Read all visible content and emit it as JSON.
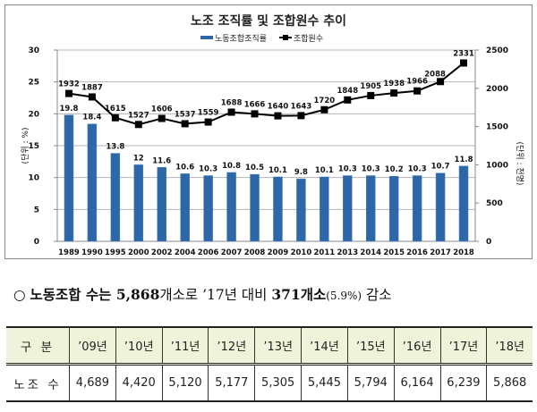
{
  "chart_data": {
    "type": "bar+line",
    "title": "노조 조직률 및 조합원수 추이",
    "legend": [
      "노동조합조직률",
      "조합원수"
    ],
    "legend_position": "top",
    "categories": [
      "1989",
      "1990",
      "1995",
      "2000",
      "2002",
      "2004",
      "2006",
      "2007",
      "2008",
      "2009",
      "2010",
      "2011",
      "2013",
      "2014",
      "2015",
      "2016",
      "2017",
      "2018"
    ],
    "series": [
      {
        "name": "노동조합조직률",
        "type": "bar",
        "axis": "left",
        "color": "#2e67a8",
        "values": [
          19.8,
          18.4,
          13.8,
          12,
          11.6,
          10.6,
          10.3,
          10.8,
          10.5,
          10.1,
          9.8,
          10.1,
          10.3,
          10.3,
          10.2,
          10.3,
          10.7,
          11.8
        ],
        "labels": [
          "19.8",
          "18.4",
          "13.8",
          "12",
          "11.6",
          "10.6",
          "10.3",
          "10.8",
          "10.5",
          "10.1",
          "9.8",
          "10.1",
          "10.3",
          "10.3",
          "10.2",
          "10.3",
          "10.7",
          "11.8"
        ]
      },
      {
        "name": "조합원수",
        "type": "line",
        "axis": "right",
        "color": "#000000",
        "values": [
          1932,
          1887,
          1615,
          1527,
          1606,
          1537,
          1559,
          1688,
          1666,
          1640,
          1643,
          1720,
          1848,
          1905,
          1938,
          1966,
          2088,
          2331
        ]
      }
    ],
    "ylabel": "(단위 : %)",
    "ylabel_right": "(단위 : 천명)",
    "ylim": [
      0,
      30
    ],
    "yticks": [
      0,
      5,
      10,
      15,
      20,
      25,
      30
    ],
    "ylim_right": [
      0,
      2500
    ],
    "yticks_right": [
      0,
      500,
      1000,
      1500,
      2000,
      2500
    ],
    "grid": true
  },
  "summary": {
    "bullet": "○",
    "part1": "노동조합 수는 ",
    "count": "5,868",
    "part2": "개소로 ’17년 대비 ",
    "decrease": "371개소",
    "pct": "(5.9%)",
    "part3": " 감소"
  },
  "table": {
    "header_label": "구 분",
    "years": [
      "’09년",
      "’10년",
      "’11년",
      "’12년",
      "’13년",
      "’14년",
      "’15년",
      "’16년",
      "’17년",
      "’18년"
    ],
    "row_label": "노조 수",
    "values": [
      "4,689",
      "4,420",
      "5,120",
      "5,177",
      "5,305",
      "5,445",
      "5,794",
      "6,164",
      "6,239",
      "5,868"
    ]
  }
}
